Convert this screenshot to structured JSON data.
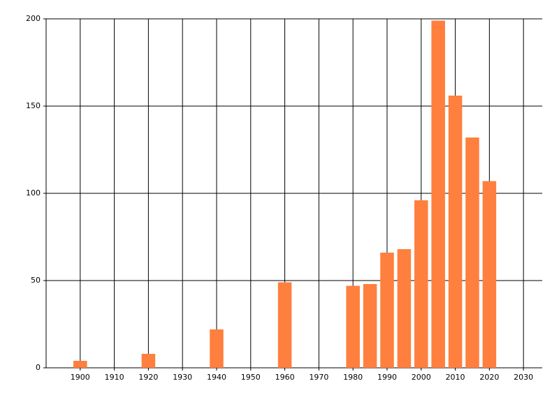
{
  "chart_data": {
    "type": "bar",
    "x": [
      1900,
      1920,
      1940,
      1960,
      1980,
      1985,
      1990,
      1995,
      2000,
      2005,
      2010,
      2015,
      2020
    ],
    "values": [
      4,
      8,
      22,
      49,
      47,
      48,
      66,
      68,
      96,
      199,
      156,
      132,
      107
    ],
    "color": "#ff7f3f",
    "xlim": [
      1890,
      2035.5
    ],
    "xticks": [
      1900,
      1910,
      1920,
      1930,
      1940,
      1950,
      1960,
      1970,
      1980,
      1990,
      2000,
      2010,
      2020,
      2030
    ],
    "ylim": [
      0,
      200
    ],
    "yticks": [
      0,
      50,
      100,
      150,
      200
    ],
    "grid": true
  }
}
